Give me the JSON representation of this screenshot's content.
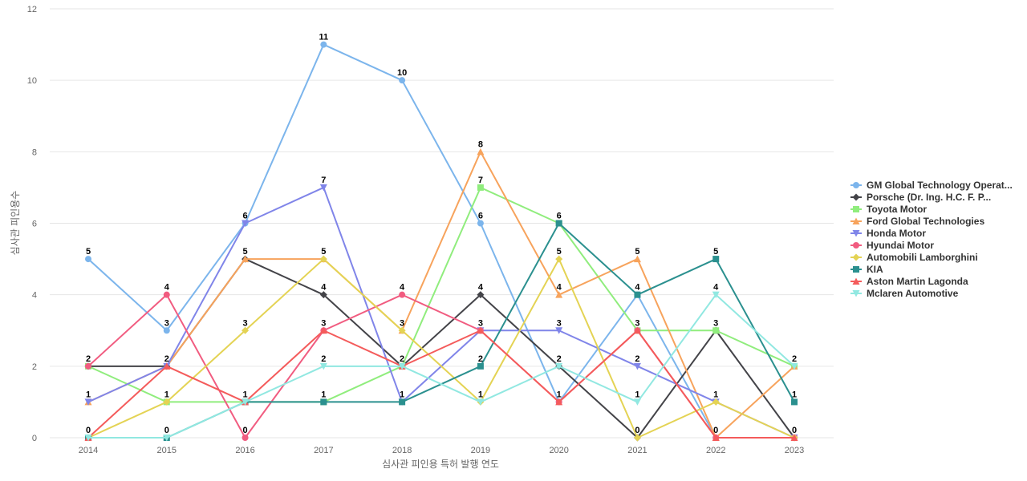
{
  "chart_data": {
    "type": "line",
    "title": "",
    "xlabel": "심사관 피인용 특허 발행 연도",
    "ylabel": "심사관 피인용수",
    "ylim": [
      0,
      12
    ],
    "yticks": [
      0,
      2,
      4,
      6,
      8,
      10,
      12
    ],
    "categories": [
      "2014",
      "2015",
      "2016",
      "2017",
      "2018",
      "2019",
      "2020",
      "2021",
      "2022",
      "2023"
    ],
    "legend_position": "right",
    "series": [
      {
        "name": "GM Global Technology Operat...",
        "color": "#7cb5ec",
        "marker": "circle",
        "values": [
          5,
          3,
          6,
          11,
          10,
          6,
          1,
          4,
          0,
          0
        ]
      },
      {
        "name": "Porsche (Dr. Ing. H.C. F. P...",
        "color": "#434348",
        "marker": "diamond",
        "values": [
          2,
          2,
          5,
          4,
          2,
          4,
          2,
          0,
          3,
          0
        ]
      },
      {
        "name": "Toyota Motor",
        "color": "#90ed7d",
        "marker": "square",
        "values": [
          2,
          1,
          1,
          1,
          2,
          7,
          6,
          3,
          3,
          2
        ]
      },
      {
        "name": "Ford Global Technologies",
        "color": "#f7a35c",
        "marker": "triangle",
        "values": [
          1,
          2,
          5,
          5,
          3,
          8,
          4,
          5,
          0,
          2
        ]
      },
      {
        "name": "Honda Motor",
        "color": "#8085e9",
        "marker": "triangle-down",
        "values": [
          1,
          2,
          6,
          7,
          1,
          3,
          3,
          2,
          1,
          0
        ]
      },
      {
        "name": "Hyundai Motor",
        "color": "#f15c80",
        "marker": "circle",
        "values": [
          2,
          4,
          0,
          3,
          4,
          3,
          1,
          3,
          0,
          0
        ]
      },
      {
        "name": "Automobili Lamborghini",
        "color": "#e4d354",
        "marker": "diamond",
        "values": [
          0,
          1,
          3,
          5,
          3,
          1,
          5,
          0,
          1,
          0
        ]
      },
      {
        "name": "KIA",
        "color": "#2b908f",
        "marker": "square",
        "values": [
          0,
          0,
          1,
          1,
          1,
          2,
          6,
          4,
          5,
          1
        ]
      },
      {
        "name": "Aston Martin Lagonda",
        "color": "#f45b5b",
        "marker": "triangle",
        "values": [
          0,
          2,
          1,
          3,
          2,
          3,
          1,
          3,
          0,
          0
        ]
      },
      {
        "name": "Mclaren Automotive",
        "color": "#91e8e1",
        "marker": "triangle-down",
        "values": [
          0,
          0,
          1,
          2,
          2,
          1,
          2,
          1,
          4,
          2
        ]
      }
    ],
    "point_labels": [
      {
        "x": "2014",
        "y": 5,
        "text": "5"
      },
      {
        "x": "2014",
        "y": 2,
        "text": "2"
      },
      {
        "x": "2014",
        "y": 1,
        "text": "1"
      },
      {
        "x": "2014",
        "y": 0,
        "text": "0"
      },
      {
        "x": "2015",
        "y": 4,
        "text": "4"
      },
      {
        "x": "2015",
        "y": 3,
        "text": "3"
      },
      {
        "x": "2015",
        "y": 2,
        "text": "2"
      },
      {
        "x": "2015",
        "y": 1,
        "text": "1"
      },
      {
        "x": "2015",
        "y": 0,
        "text": "0"
      },
      {
        "x": "2016",
        "y": 6,
        "text": "6"
      },
      {
        "x": "2016",
        "y": 5,
        "text": "5"
      },
      {
        "x": "2016",
        "y": 3,
        "text": "3"
      },
      {
        "x": "2016",
        "y": 1,
        "text": "1"
      },
      {
        "x": "2016",
        "y": 0,
        "text": "0"
      },
      {
        "x": "2017",
        "y": 11,
        "text": "11"
      },
      {
        "x": "2017",
        "y": 7,
        "text": "7"
      },
      {
        "x": "2017",
        "y": 5,
        "text": "5"
      },
      {
        "x": "2017",
        "y": 4,
        "text": "4"
      },
      {
        "x": "2017",
        "y": 3,
        "text": "3"
      },
      {
        "x": "2017",
        "y": 2,
        "text": "2"
      },
      {
        "x": "2017",
        "y": 1,
        "text": "1"
      },
      {
        "x": "2018",
        "y": 10,
        "text": "10"
      },
      {
        "x": "2018",
        "y": 4,
        "text": "4"
      },
      {
        "x": "2018",
        "y": 3,
        "text": "3"
      },
      {
        "x": "2018",
        "y": 2,
        "text": "2"
      },
      {
        "x": "2018",
        "y": 1,
        "text": "1"
      },
      {
        "x": "2019",
        "y": 8,
        "text": "8"
      },
      {
        "x": "2019",
        "y": 7,
        "text": "7"
      },
      {
        "x": "2019",
        "y": 6,
        "text": "6"
      },
      {
        "x": "2019",
        "y": 4,
        "text": "4"
      },
      {
        "x": "2019",
        "y": 3,
        "text": "3"
      },
      {
        "x": "2019",
        "y": 2,
        "text": "2"
      },
      {
        "x": "2019",
        "y": 1,
        "text": "1"
      },
      {
        "x": "2020",
        "y": 6,
        "text": "6"
      },
      {
        "x": "2020",
        "y": 5,
        "text": "5"
      },
      {
        "x": "2020",
        "y": 4,
        "text": "4"
      },
      {
        "x": "2020",
        "y": 3,
        "text": "3"
      },
      {
        "x": "2020",
        "y": 2,
        "text": "2"
      },
      {
        "x": "2020",
        "y": 1,
        "text": "1"
      },
      {
        "x": "2021",
        "y": 5,
        "text": "5"
      },
      {
        "x": "2021",
        "y": 4,
        "text": "4"
      },
      {
        "x": "2021",
        "y": 3,
        "text": "3"
      },
      {
        "x": "2021",
        "y": 2,
        "text": "2"
      },
      {
        "x": "2021",
        "y": 1,
        "text": "1"
      },
      {
        "x": "2021",
        "y": 0,
        "text": "0"
      },
      {
        "x": "2022",
        "y": 5,
        "text": "5"
      },
      {
        "x": "2022",
        "y": 4,
        "text": "4"
      },
      {
        "x": "2022",
        "y": 3,
        "text": "3"
      },
      {
        "x": "2022",
        "y": 1,
        "text": "1"
      },
      {
        "x": "2022",
        "y": 0,
        "text": "0"
      },
      {
        "x": "2023",
        "y": 2,
        "text": "2"
      },
      {
        "x": "2023",
        "y": 1,
        "text": "1"
      },
      {
        "x": "2023",
        "y": 0,
        "text": "0"
      }
    ]
  }
}
